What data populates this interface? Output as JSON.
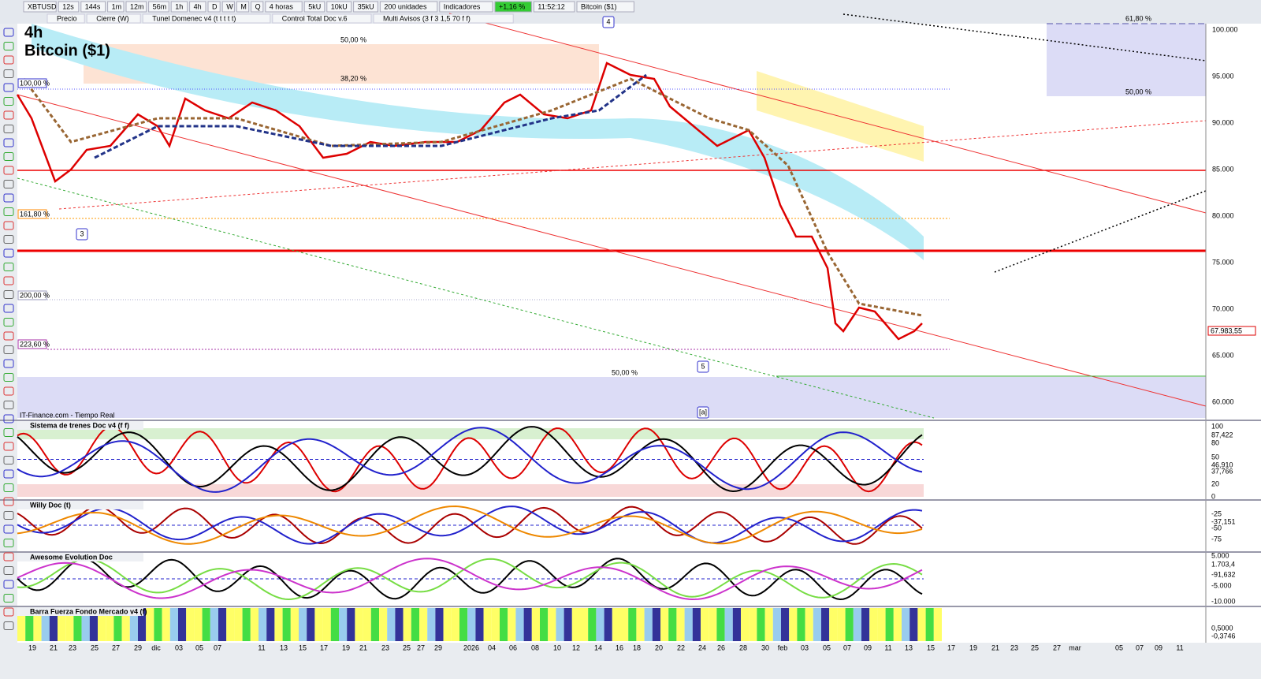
{
  "toolbar": {
    "items": [
      "XBTUSD",
      "12s",
      "144s",
      "1m",
      "12m",
      "56m",
      "1h",
      "4h",
      "D",
      "W",
      "M",
      "Q",
      "4 horas",
      "5kU",
      "10kU",
      "35kU",
      "200 unidades",
      "Indicadores",
      "+1,16 %",
      "11:52:12",
      "Bitcoin ($1)"
    ]
  },
  "legend_row": {
    "items": [
      "Precio",
      "Cierre (W)",
      "Tunel Domenec v4 (t t t t t)",
      "Control Total Doc v.6",
      "Multi Avisos (3 f 3 1,5 70 f f)"
    ]
  },
  "main_chart": {
    "timeframe": "4h",
    "name": "Bitcoin ($1)",
    "source": "IT-Finance.com - Tiempo Real",
    "price_labels": [
      "100.000",
      "95.000",
      "90.000",
      "85.000",
      "80.000",
      "75.000",
      "70.000",
      "65.000",
      "60.000"
    ],
    "price_tags": [
      "67.983,55"
    ],
    "fib_labels": [
      "50,00 %",
      "38,20 %",
      "100,00 %",
      "161,80 %",
      "200,00 %",
      "223,60 %",
      "50,00 %",
      "61,80 %",
      "50,00 %"
    ],
    "wave_labels": [
      "4",
      "3",
      "5",
      "[a]"
    ]
  },
  "panels": [
    {
      "title": "Sistema de trenes Doc v4 (f f)",
      "axis_labels": [
        "100",
        "87,422",
        "80",
        "50",
        "46,910",
        "37,766",
        "20",
        "0"
      ]
    },
    {
      "title": "Willy Doc (t)",
      "axis_labels": [
        "-25",
        "-37,151",
        "-50",
        "-75"
      ]
    },
    {
      "title": "Awesome Evolution Doc",
      "axis_labels": [
        "5.000",
        "1.703,4",
        "-91,632",
        "-5.000",
        "-10.000"
      ]
    },
    {
      "title": "Barra Fuerza Fondo Mercado v4 (f)",
      "axis_labels": [
        "0,5000",
        "-0,3746"
      ]
    }
  ],
  "date_labels": [
    "19",
    "21",
    "23",
    "25",
    "27",
    "29",
    "dic",
    "03",
    "05",
    "07",
    "11",
    "13",
    "15",
    "17",
    "19",
    "21",
    "23",
    "25",
    "27",
    "29",
    "2026",
    "04",
    "06",
    "08",
    "10",
    "12",
    "14",
    "16",
    "18",
    "20",
    "22",
    "24",
    "26",
    "28",
    "30",
    "feb",
    "03",
    "05",
    "07",
    "09",
    "11",
    "13",
    "15",
    "17",
    "19",
    "21",
    "23",
    "25",
    "27",
    "mar",
    "05",
    "07",
    "09",
    "11"
  ]
}
